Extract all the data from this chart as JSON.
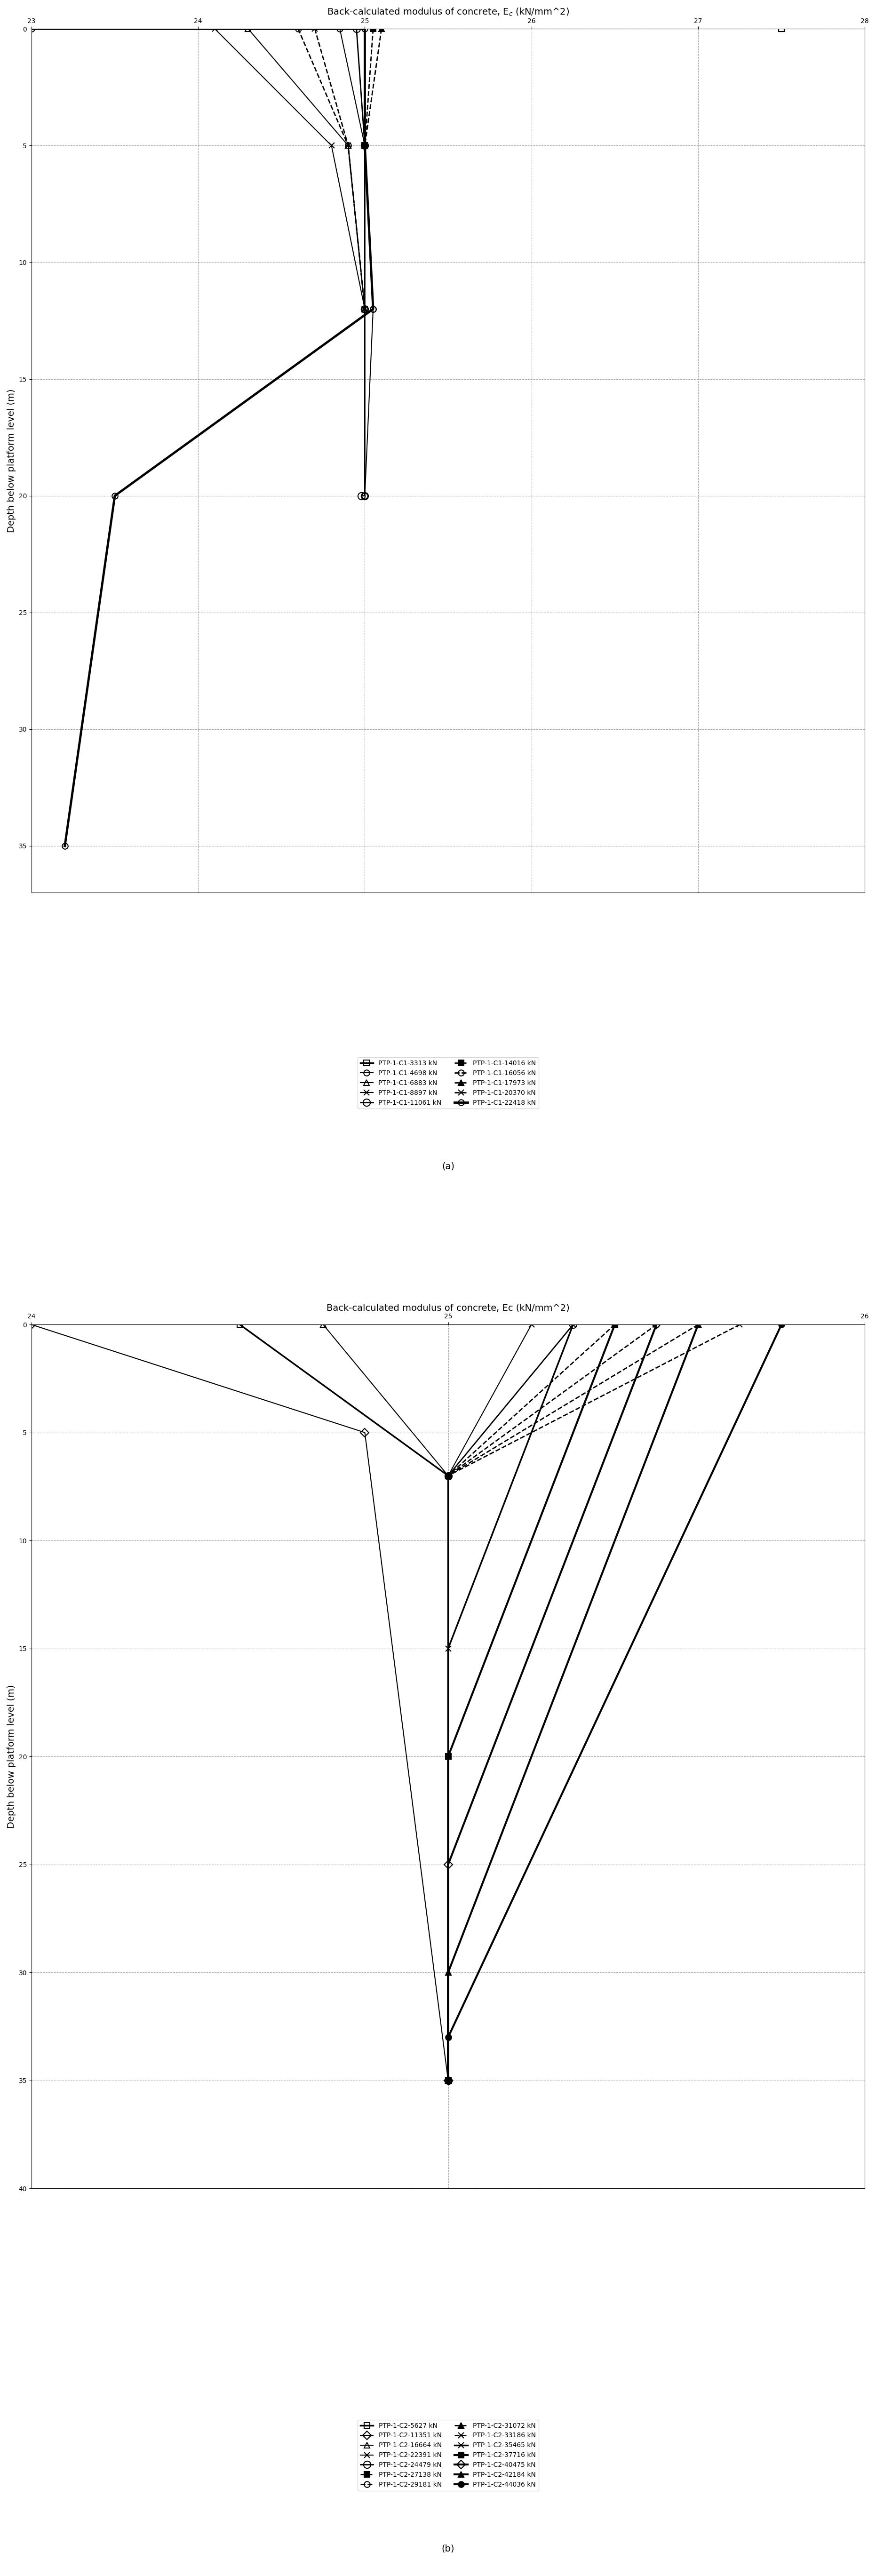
{
  "chart_a": {
    "title": "Back-calculated modulus of concrete, E$_c$ (kN/mm^2)",
    "xlabel": "Back-calculated modulus of concrete, E_c (kN/mm^2)",
    "ylabel": "Depth below platform level (m)",
    "xlim": [
      23,
      28
    ],
    "ylim": [
      0,
      37
    ],
    "xticks": [
      23,
      24,
      25,
      26,
      27,
      28
    ],
    "yticks": [
      0,
      5,
      10,
      15,
      20,
      25,
      30,
      35
    ],
    "series": [
      {
        "label": "PTP-1-C1-3313 kN",
        "marker": "s",
        "linestyle": "-",
        "linewidth": 2.5,
        "markersize": 10,
        "fillstyle": "none",
        "color": "black",
        "data_x": [
          27.5,
          27.5
        ],
        "data_y": [
          0,
          0
        ]
      },
      {
        "label": "PTP-1-C1-4698 kN",
        "marker": "o",
        "linestyle": "-",
        "linewidth": 1.5,
        "markersize": 10,
        "fillstyle": "none",
        "color": "black",
        "data_x": [
          24.85,
          24.85
        ],
        "data_y": [
          0,
          0
        ]
      },
      {
        "label": "PTP-1-C1-6883 kN",
        "marker": "^",
        "linestyle": "-",
        "linewidth": 1.5,
        "markersize": 10,
        "fillstyle": "none",
        "color": "black",
        "data_x": [
          24.3,
          24.3
        ],
        "data_y": [
          0,
          0
        ]
      },
      {
        "label": "PTP-1-C1-8897 kN",
        "marker": "x",
        "linestyle": "-",
        "linewidth": 1.5,
        "markersize": 10,
        "fillstyle": "none",
        "color": "black",
        "data_x": [
          24.1,
          24.1
        ],
        "data_y": [
          0,
          0
        ]
      },
      {
        "label": "PTP-1-C1-11061 kN",
        "marker": "o",
        "linestyle": "-",
        "linewidth": 2.0,
        "markersize": 12,
        "fillstyle": "none",
        "color": "black",
        "data_x": [
          24.95,
          25.0,
          24.95,
          24.95,
          25.0
        ],
        "data_y": [
          0,
          5,
          12,
          20,
          20
        ]
      },
      {
        "label": "PTP-1-C1-14016 kN",
        "marker": "s",
        "linestyle": "--",
        "linewidth": 2.0,
        "markersize": 10,
        "fillstyle": "full",
        "color": "black",
        "data_x": [
          25.0,
          25.0
        ],
        "data_y": [
          0,
          0
        ]
      },
      {
        "label": "PTP-1-C1-16056 kN",
        "marker": "o",
        "linestyle": "--",
        "linewidth": 2.0,
        "markersize": 10,
        "fillstyle": "none",
        "color": "black",
        "data_x": [
          24.6,
          24.6
        ],
        "data_y": [
          0,
          0
        ]
      },
      {
        "label": "PTP-1-C1-17973 kN",
        "marker": "^",
        "linestyle": "--",
        "linewidth": 2.0,
        "markersize": 10,
        "fillstyle": "full",
        "color": "black",
        "data_x": [
          25.1,
          25.1
        ],
        "data_y": [
          0,
          0
        ]
      },
      {
        "label": "PTP-1-C1-20370 kN",
        "marker": "x",
        "linestyle": "--",
        "linewidth": 2.0,
        "markersize": 10,
        "fillstyle": "none",
        "color": "black",
        "data_x": [
          24.7,
          24.7
        ],
        "data_y": [
          0,
          0
        ]
      },
      {
        "label": "PTP-1-C1-22418 kN",
        "marker": "o",
        "linestyle": "-",
        "linewidth": 3.5,
        "markersize": 10,
        "fillstyle": "none",
        "color": "black",
        "data_x": [
          23.0,
          25.0,
          25.0,
          25.05,
          23.5,
          23.2
        ],
        "data_y": [
          0,
          0,
          5,
          12,
          20,
          35
        ]
      }
    ],
    "footnote": "(a)"
  },
  "chart_b": {
    "title": "Back-calculated modulus of concrete, Ec (kN/mm^2)",
    "xlabel": "Back-calculated modulus of concrete, Ec (kN/mm^2)",
    "ylabel": "Depth below platform level (m)",
    "xlim": [
      24,
      26
    ],
    "ylim": [
      0,
      40
    ],
    "xticks": [
      24,
      25,
      26
    ],
    "yticks": [
      0,
      5,
      10,
      15,
      20,
      25,
      30,
      35,
      40
    ],
    "series": [
      {
        "label": "PTP-1-C2-5627 kN",
        "marker": "s",
        "linestyle": "-",
        "linewidth": 2.5,
        "markersize": 10,
        "fillstyle": "none",
        "color": "black",
        "data_x": [
          24.5,
          25.0
        ],
        "data_y": [
          0,
          7
        ]
      },
      {
        "label": "PTP-1-C2-11351 kN",
        "marker": "D",
        "linestyle": "-",
        "linewidth": 1.5,
        "markersize": 10,
        "fillstyle": "none",
        "color": "black",
        "data_x": [
          24.0,
          25.0
        ],
        "data_y": [
          0,
          7
        ]
      },
      {
        "label": "PTP-1-C2-16664 kN",
        "marker": "^",
        "linestyle": "-",
        "linewidth": 1.5,
        "markersize": 10,
        "fillstyle": "none",
        "color": "black",
        "data_x": [
          24.7,
          25.0
        ],
        "data_y": [
          0,
          7
        ]
      },
      {
        "label": "PTP-1-C2-22391 kN",
        "marker": "x",
        "linestyle": "-",
        "linewidth": 1.5,
        "markersize": 10,
        "fillstyle": "none",
        "color": "black",
        "data_x": [
          25.2,
          25.0
        ],
        "data_y": [
          0,
          7
        ]
      },
      {
        "label": "PTP-1-C2-24479 kN",
        "marker": "o",
        "linestyle": "-",
        "linewidth": 2.0,
        "markersize": 12,
        "fillstyle": "none",
        "color": "black",
        "data_x": [
          25.3,
          25.0
        ],
        "data_y": [
          0,
          7
        ]
      },
      {
        "label": "PTP-1-C2-27138 kN",
        "marker": "s",
        "linestyle": "--",
        "linewidth": 2.0,
        "markersize": 10,
        "fillstyle": "full",
        "color": "black",
        "data_x": [
          25.4,
          25.0
        ],
        "data_y": [
          0,
          7
        ]
      },
      {
        "label": "PTP-1-C2-29181 kN",
        "marker": "o",
        "linestyle": "--",
        "linewidth": 2.0,
        "markersize": 10,
        "fillstyle": "none",
        "color": "black",
        "data_x": [
          25.5,
          25.0
        ],
        "data_y": [
          0,
          7
        ]
      },
      {
        "label": "PTP-1-C2-31072 kN",
        "marker": "^",
        "linestyle": "--",
        "linewidth": 2.0,
        "markersize": 10,
        "fillstyle": "full",
        "color": "black",
        "data_x": [
          25.6,
          25.0
        ],
        "data_y": [
          0,
          7
        ]
      },
      {
        "label": "PTP-1-C2-33186 kN",
        "marker": "x",
        "linestyle": "--",
        "linewidth": 2.0,
        "markersize": 10,
        "fillstyle": "none",
        "color": "black",
        "data_x": [
          25.7,
          25.0
        ],
        "data_y": [
          0,
          7
        ]
      },
      {
        "label": "PTP-1-C2-35465 kN",
        "marker": "x",
        "linestyle": "-",
        "linewidth": 2.5,
        "markersize": 10,
        "fillstyle": "none",
        "color": "black",
        "data_x": [
          25.8,
          25.0
        ],
        "data_y": [
          0,
          7
        ]
      },
      {
        "label": "PTP-1-C2-37716 kN",
        "marker": "s",
        "linestyle": "-",
        "linewidth": 3.0,
        "markersize": 10,
        "fillstyle": "full",
        "color": "black",
        "data_x": [
          25.9,
          25.0
        ],
        "data_y": [
          0,
          7
        ]
      },
      {
        "label": "PTP-1-C2-40475 kN",
        "marker": "D",
        "linestyle": "-",
        "linewidth": 3.0,
        "markersize": 10,
        "fillstyle": "none",
        "color": "black",
        "data_x": [
          25.95,
          25.0
        ],
        "data_y": [
          0,
          7
        ]
      },
      {
        "label": "PTP-1-C2-42184 kN",
        "marker": "^",
        "linestyle": "-",
        "linewidth": 3.0,
        "markersize": 10,
        "fillstyle": "full",
        "color": "black",
        "data_x": [
          26.0,
          25.0
        ],
        "data_y": [
          0,
          7
        ]
      },
      {
        "label": "PTP-1-C2-44036 kN",
        "marker": "o",
        "linestyle": "-",
        "linewidth": 3.0,
        "markersize": 10,
        "fillstyle": "full",
        "color": "black",
        "data_x": [
          26.1,
          25.0
        ],
        "data_y": [
          0,
          7
        ]
      }
    ],
    "footnote": "(b)"
  }
}
